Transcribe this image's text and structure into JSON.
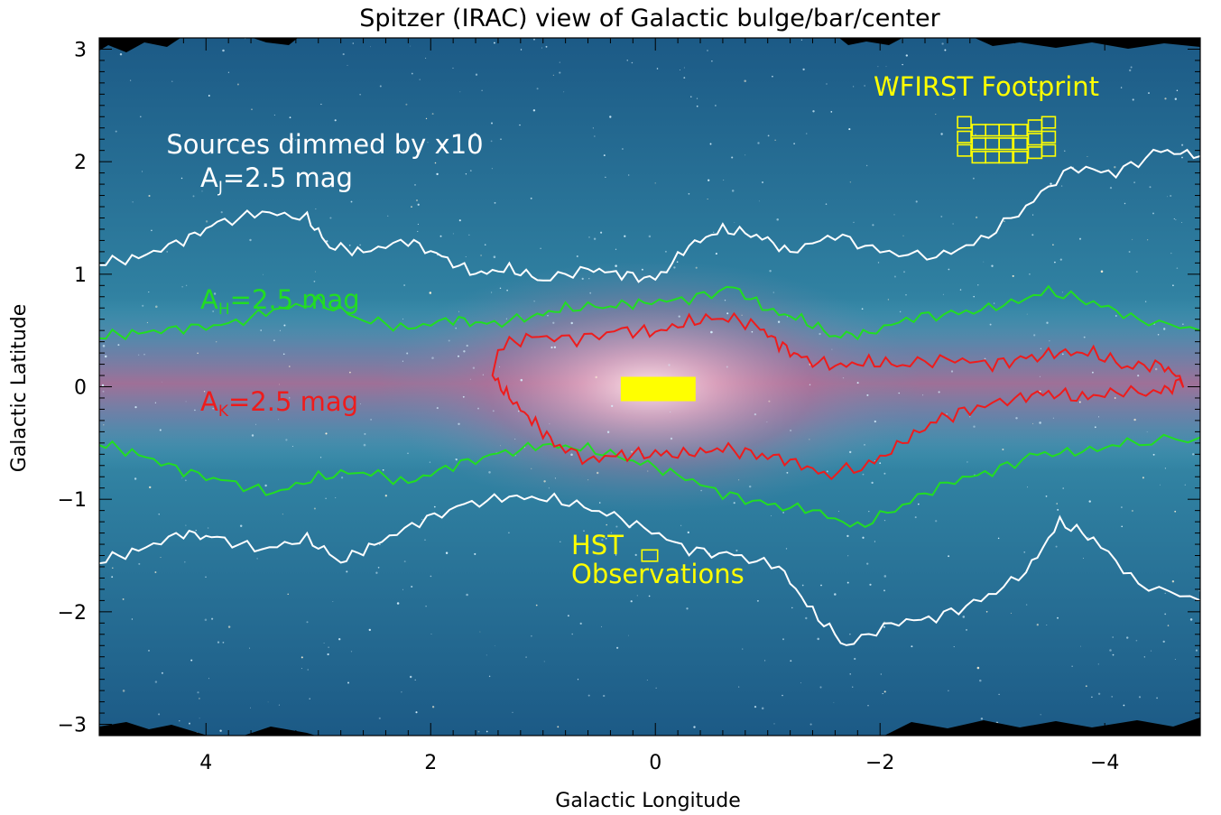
{
  "chart_data": {
    "type": "image-contour",
    "title": "Spitzer (IRAC) view of Galactic bulge/bar/center",
    "xlabel": "Galactic Longitude",
    "ylabel": "Galactic Latitude",
    "xlim": [
      4.95,
      -4.85
    ],
    "ylim": [
      -3.1,
      3.1
    ],
    "x_ticks": [
      4,
      2,
      0,
      -2,
      -4
    ],
    "y_ticks": [
      3,
      2,
      1,
      0,
      -1,
      -2,
      -3
    ],
    "x_tick_labels": [
      "4",
      "2",
      "0",
      "−2",
      "−4"
    ],
    "y_tick_labels": [
      "3",
      "2",
      "1",
      "0",
      "−1",
      "−2",
      "−3"
    ],
    "annotations": {
      "sources_dimmed": "Sources dimmed by x10",
      "aj_prefix": "A",
      "aj_sub": "J",
      "aj_suffix": "=2.5 mag",
      "ah_prefix": "A",
      "ah_sub": "H",
      "ah_suffix": "=2.5 mag",
      "ak_prefix": "A",
      "ak_sub": "K",
      "ak_suffix": "=2.5 mag",
      "wfirst": "WFIRST Footprint",
      "hst_1": "HST",
      "hst_2": "Observations"
    },
    "contours": [
      {
        "name": "A_J=2.5 mag",
        "color": "#ffffff",
        "upper": [
          [
            4.95,
            1.1
          ],
          [
            4.6,
            1.15
          ],
          [
            4.2,
            1.3
          ],
          [
            3.9,
            1.45
          ],
          [
            3.5,
            1.55
          ],
          [
            3.1,
            1.5
          ],
          [
            2.9,
            1.25
          ],
          [
            2.6,
            1.2
          ],
          [
            2.2,
            1.3
          ],
          [
            1.9,
            1.15
          ],
          [
            1.6,
            1.0
          ],
          [
            1.3,
            1.05
          ],
          [
            1.0,
            0.95
          ],
          [
            0.6,
            1.05
          ],
          [
            0.3,
            1.0
          ],
          [
            0.0,
            0.95
          ],
          [
            -0.3,
            1.25
          ],
          [
            -0.6,
            1.4
          ],
          [
            -0.9,
            1.35
          ],
          [
            -1.2,
            1.2
          ],
          [
            -1.6,
            1.35
          ],
          [
            -2.0,
            1.2
          ],
          [
            -2.5,
            1.15
          ],
          [
            -2.9,
            1.3
          ],
          [
            -3.3,
            1.6
          ],
          [
            -3.7,
            1.95
          ],
          [
            -4.1,
            1.9
          ],
          [
            -4.5,
            2.1
          ],
          [
            -4.85,
            2.05
          ]
        ],
        "lower": [
          [
            4.95,
            -1.55
          ],
          [
            4.6,
            -1.45
          ],
          [
            4.2,
            -1.3
          ],
          [
            3.9,
            -1.35
          ],
          [
            3.5,
            -1.45
          ],
          [
            3.1,
            -1.35
          ],
          [
            2.8,
            -1.55
          ],
          [
            2.5,
            -1.4
          ],
          [
            2.1,
            -1.2
          ],
          [
            1.7,
            -1.05
          ],
          [
            1.3,
            -0.98
          ],
          [
            0.9,
            -1.0
          ],
          [
            0.5,
            -1.1
          ],
          [
            0.1,
            -1.25
          ],
          [
            -0.3,
            -1.45
          ],
          [
            -0.7,
            -1.5
          ],
          [
            -1.1,
            -1.6
          ],
          [
            -1.4,
            -2.0
          ],
          [
            -1.7,
            -2.3
          ],
          [
            -2.1,
            -2.1
          ],
          [
            -2.5,
            -2.05
          ],
          [
            -2.9,
            -1.9
          ],
          [
            -3.3,
            -1.65
          ],
          [
            -3.6,
            -1.2
          ],
          [
            -3.9,
            -1.35
          ],
          [
            -4.3,
            -1.75
          ],
          [
            -4.85,
            -1.9
          ]
        ]
      },
      {
        "name": "A_H=2.5 mag",
        "color": "#22dd22",
        "upper": [
          [
            4.95,
            0.45
          ],
          [
            4.6,
            0.48
          ],
          [
            4.2,
            0.52
          ],
          [
            3.8,
            0.55
          ],
          [
            3.4,
            0.68
          ],
          [
            3.0,
            0.75
          ],
          [
            2.6,
            0.6
          ],
          [
            2.2,
            0.52
          ],
          [
            1.8,
            0.6
          ],
          [
            1.5,
            0.55
          ],
          [
            1.1,
            0.62
          ],
          [
            0.8,
            0.7
          ],
          [
            0.4,
            0.72
          ],
          [
            0.1,
            0.75
          ],
          [
            -0.3,
            0.78
          ],
          [
            -0.7,
            0.88
          ],
          [
            -1.0,
            0.68
          ],
          [
            -1.3,
            0.6
          ],
          [
            -1.6,
            0.45
          ],
          [
            -1.9,
            0.48
          ],
          [
            -2.3,
            0.62
          ],
          [
            -2.7,
            0.65
          ],
          [
            -3.1,
            0.72
          ],
          [
            -3.5,
            0.85
          ],
          [
            -3.9,
            0.75
          ],
          [
            -4.3,
            0.6
          ],
          [
            -4.85,
            0.5
          ]
        ],
        "lower": [
          [
            4.95,
            -0.5
          ],
          [
            4.6,
            -0.6
          ],
          [
            4.2,
            -0.75
          ],
          [
            3.8,
            -0.85
          ],
          [
            3.4,
            -0.95
          ],
          [
            3.0,
            -0.8
          ],
          [
            2.6,
            -0.75
          ],
          [
            2.2,
            -0.85
          ],
          [
            1.8,
            -0.7
          ],
          [
            1.4,
            -0.6
          ],
          [
            1.0,
            -0.52
          ],
          [
            0.6,
            -0.55
          ],
          [
            0.2,
            -0.65
          ],
          [
            -0.2,
            -0.78
          ],
          [
            -0.6,
            -0.95
          ],
          [
            -1.0,
            -1.05
          ],
          [
            -1.4,
            -1.1
          ],
          [
            -1.8,
            -1.25
          ],
          [
            -2.2,
            -1.05
          ],
          [
            -2.6,
            -0.85
          ],
          [
            -3.0,
            -0.75
          ],
          [
            -3.4,
            -0.6
          ],
          [
            -3.8,
            -0.58
          ],
          [
            -4.2,
            -0.5
          ],
          [
            -4.85,
            -0.45
          ]
        ]
      },
      {
        "name": "A_K=2.5 mag",
        "color": "#ee1c1c",
        "outline": [
          [
            1.4,
            0.35
          ],
          [
            1.1,
            0.45
          ],
          [
            0.7,
            0.42
          ],
          [
            0.3,
            0.5
          ],
          [
            0.0,
            0.48
          ],
          [
            -0.3,
            0.58
          ],
          [
            -0.6,
            0.62
          ],
          [
            -0.9,
            0.55
          ],
          [
            -1.1,
            0.38
          ],
          [
            -1.3,
            0.25
          ],
          [
            -1.6,
            0.18
          ],
          [
            -1.9,
            0.22
          ],
          [
            -2.2,
            0.2
          ],
          [
            -2.6,
            0.25
          ],
          [
            -3.0,
            0.2
          ],
          [
            -3.3,
            0.25
          ],
          [
            -3.6,
            0.3
          ],
          [
            -3.9,
            0.3
          ],
          [
            -4.2,
            0.18
          ],
          [
            -4.5,
            0.2
          ],
          [
            -4.7,
            0.05
          ],
          [
            -4.5,
            -0.05
          ],
          [
            -4.1,
            -0.05
          ],
          [
            -3.8,
            -0.1
          ],
          [
            -3.5,
            -0.05
          ],
          [
            -3.2,
            -0.1
          ],
          [
            -2.8,
            -0.2
          ],
          [
            -2.5,
            -0.3
          ],
          [
            -2.2,
            -0.5
          ],
          [
            -1.9,
            -0.7
          ],
          [
            -1.5,
            -0.78
          ],
          [
            -1.2,
            -0.65
          ],
          [
            -0.9,
            -0.6
          ],
          [
            -0.6,
            -0.55
          ],
          [
            -0.3,
            -0.6
          ],
          [
            0.0,
            -0.6
          ],
          [
            0.3,
            -0.6
          ],
          [
            0.6,
            -0.65
          ],
          [
            0.9,
            -0.5
          ],
          [
            1.1,
            -0.3
          ],
          [
            1.3,
            -0.1
          ],
          [
            1.45,
            0.1
          ]
        ]
      }
    ],
    "footprints": [
      {
        "name": "WFIRST Footprint",
        "color": "#ffff00",
        "fields": [
          [
            -2.75,
            2.35
          ],
          [
            -2.75,
            2.22
          ],
          [
            -2.75,
            2.1
          ],
          [
            -2.88,
            2.28
          ],
          [
            -2.88,
            2.16
          ],
          [
            -2.88,
            2.04
          ],
          [
            -3.0,
            2.28
          ],
          [
            -3.0,
            2.16
          ],
          [
            -3.0,
            2.04
          ],
          [
            -3.12,
            2.28
          ],
          [
            -3.12,
            2.16
          ],
          [
            -3.12,
            2.04
          ],
          [
            -3.25,
            2.28
          ],
          [
            -3.25,
            2.16
          ],
          [
            -3.25,
            2.04
          ],
          [
            -3.38,
            2.32
          ],
          [
            -3.38,
            2.2
          ],
          [
            -3.38,
            2.08
          ],
          [
            -3.5,
            2.35
          ],
          [
            -3.5,
            2.22
          ],
          [
            -3.5,
            2.1
          ]
        ],
        "field_size": [
          0.12,
          0.1
        ]
      },
      {
        "name": "HST Observations",
        "color": "#ffff00",
        "fields": [
          [
            0.05,
            -1.5
          ]
        ],
        "field_size": [
          0.14,
          0.1
        ]
      },
      {
        "name": "GC coverage",
        "color": "#ffff00",
        "region": [
          [
            0.3,
            0.08
          ],
          [
            -0.35,
            0.08
          ],
          [
            -0.35,
            -0.12
          ],
          [
            0.3,
            -0.12
          ]
        ]
      }
    ],
    "grid": false,
    "legend": "none"
  }
}
